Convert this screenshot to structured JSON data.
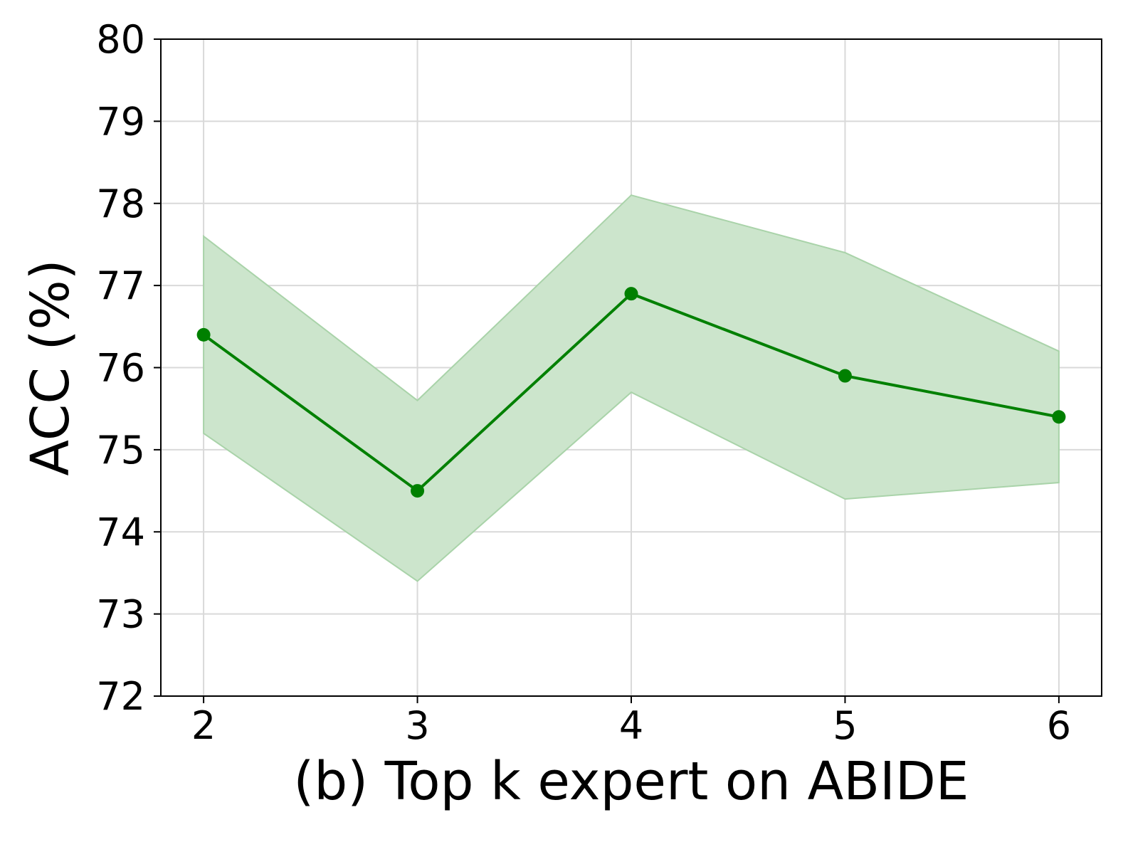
{
  "chart_data": {
    "type": "line",
    "xlabel": "(b) Top k expert on ABIDE",
    "ylabel": "ACC (%)",
    "x": [
      2,
      3,
      4,
      5,
      6
    ],
    "xlim": [
      1.8,
      6.2
    ],
    "ylim": [
      72,
      80
    ],
    "x_ticks": [
      "2",
      "3",
      "4",
      "5",
      "6"
    ],
    "y_ticks": [
      "72",
      "73",
      "74",
      "75",
      "76",
      "77",
      "78",
      "79",
      "80"
    ],
    "grid": true,
    "series": [
      {
        "values": [
          76.4,
          74.5,
          76.9,
          75.9,
          75.4
        ],
        "lower": [
          75.2,
          73.4,
          75.7,
          74.4,
          74.6
        ],
        "upper": [
          77.6,
          75.6,
          78.1,
          77.4,
          76.2
        ],
        "color": "#008000",
        "band_color": "#cce5cc"
      }
    ]
  }
}
